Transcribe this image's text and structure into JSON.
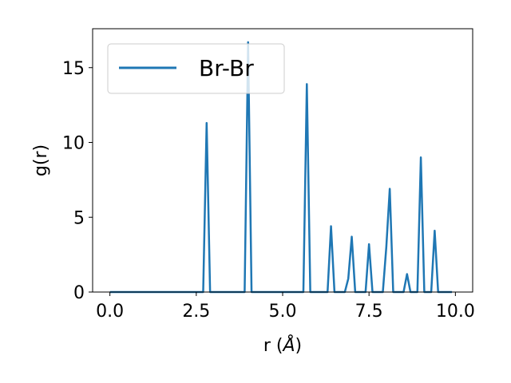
{
  "chart_data": {
    "type": "line",
    "xlabel": "r (Å)",
    "xlabel_prefix": "r (",
    "xlabel_symbol": "Å",
    "xlabel_suffix": ")",
    "ylabel": "g(r)",
    "xlim": [
      -0.5,
      10.5
    ],
    "ylim": [
      0,
      17.6
    ],
    "xticks": [
      0.0,
      2.5,
      5.0,
      7.5,
      10.0
    ],
    "xtick_labels": [
      "0.0",
      "2.5",
      "5.0",
      "7.5",
      "10.0"
    ],
    "yticks": [
      0,
      5,
      10,
      15
    ],
    "ytick_labels": [
      "0",
      "5",
      "10",
      "15"
    ],
    "legend_position": "top-left",
    "grid": false,
    "series": [
      {
        "name": "Br-Br",
        "color": "#1f77b4",
        "x": [
          0.0,
          0.1,
          0.2,
          0.3,
          0.4,
          0.5,
          0.6,
          0.7,
          0.8,
          0.9,
          1.0,
          1.1,
          1.2,
          1.3,
          1.4,
          1.5,
          1.6,
          1.7,
          1.8,
          1.9,
          2.0,
          2.1,
          2.2,
          2.3,
          2.4,
          2.5,
          2.6,
          2.7,
          2.8,
          2.9,
          3.0,
          3.1,
          3.2,
          3.3,
          3.4,
          3.5,
          3.6,
          3.7,
          3.8,
          3.9,
          4.0,
          4.1,
          4.2,
          4.3,
          4.4,
          4.5,
          4.6,
          4.7,
          4.8,
          4.9,
          5.0,
          5.1,
          5.2,
          5.3,
          5.4,
          5.5,
          5.6,
          5.7,
          5.8,
          5.9,
          6.0,
          6.1,
          6.2,
          6.3,
          6.4,
          6.5,
          6.6,
          6.7,
          6.8,
          6.9,
          7.0,
          7.1,
          7.2,
          7.3,
          7.4,
          7.5,
          7.6,
          7.7,
          7.8,
          7.9,
          8.0,
          8.1,
          8.2,
          8.3,
          8.4,
          8.5,
          8.6,
          8.7,
          8.8,
          8.9,
          9.0,
          9.1,
          9.2,
          9.3,
          9.4,
          9.5,
          9.6,
          9.7,
          9.8,
          9.9
        ],
        "values": [
          0,
          0,
          0,
          0,
          0,
          0,
          0,
          0,
          0,
          0,
          0,
          0,
          0,
          0,
          0,
          0,
          0,
          0,
          0,
          0,
          0,
          0,
          0,
          0,
          0,
          0,
          0,
          0,
          11.3,
          0,
          0,
          0,
          0,
          0,
          0,
          0,
          0,
          0,
          0,
          0,
          16.7,
          0,
          0,
          0,
          0,
          0,
          0,
          0,
          0,
          0,
          0,
          0,
          0,
          0,
          0,
          0,
          0,
          13.9,
          0,
          0,
          0,
          0,
          0,
          0,
          4.4,
          0,
          0,
          0,
          0,
          0.9,
          3.7,
          0,
          0,
          0,
          0,
          3.2,
          0,
          0,
          0,
          0,
          3.0,
          6.9,
          0,
          0,
          0,
          0,
          1.2,
          0,
          0,
          0,
          9.0,
          0,
          0,
          0,
          4.1,
          0,
          0,
          0,
          0,
          0
        ]
      }
    ]
  }
}
